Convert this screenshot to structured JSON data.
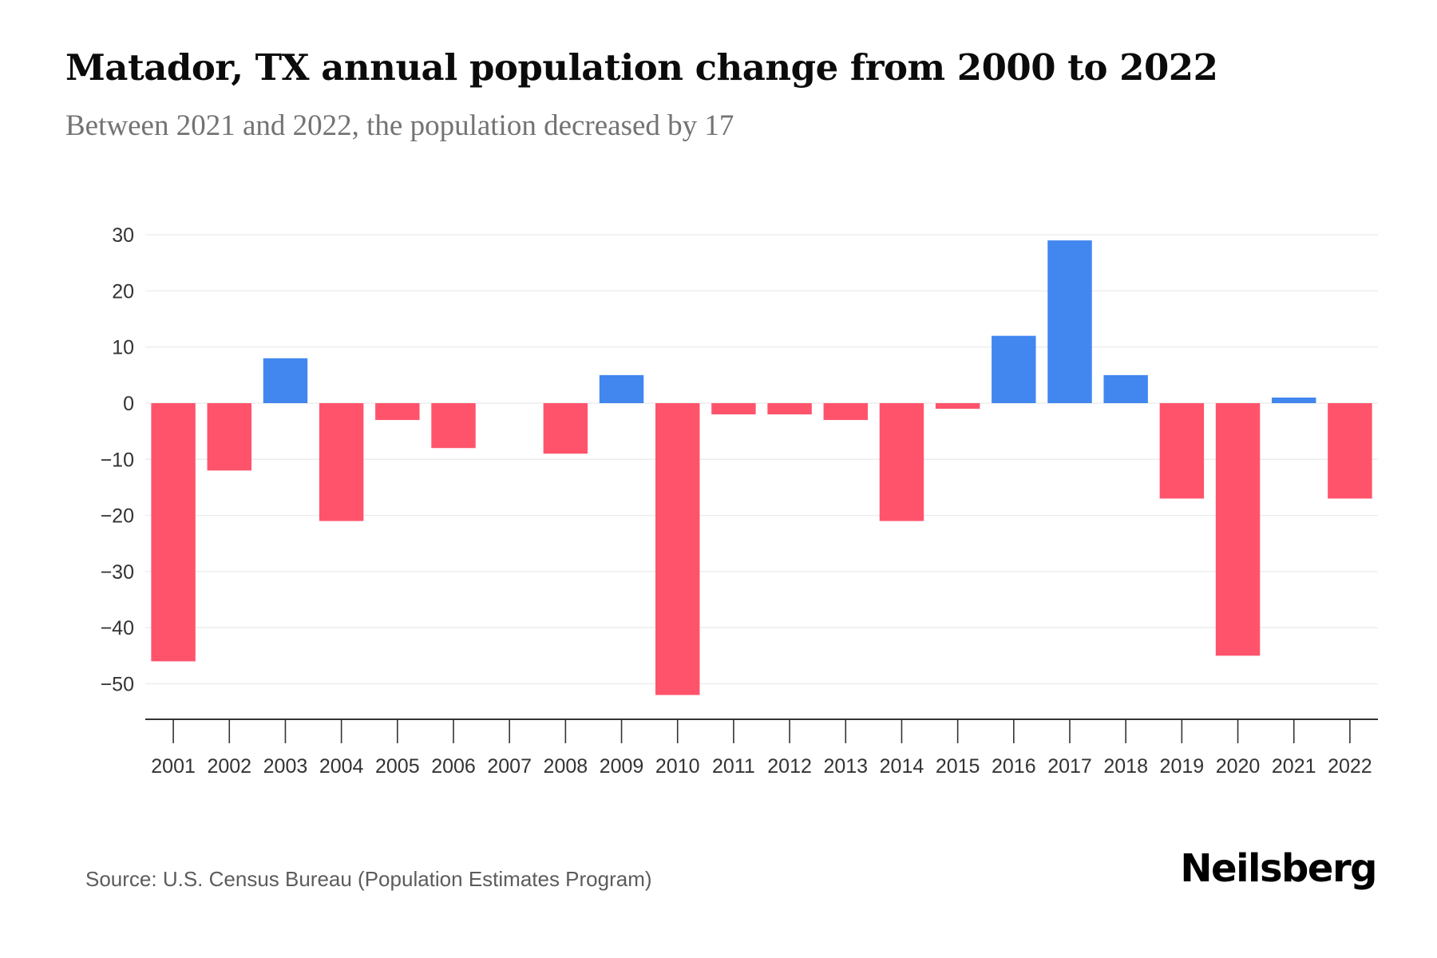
{
  "header": {
    "title": "Matador, TX annual population change from 2000 to 2022",
    "subtitle": "Between 2021 and 2022, the population decreased by 17"
  },
  "footer": {
    "source": "Source: U.S. Census Bureau (Population Estimates Program)",
    "brand": "Neilsberg"
  },
  "colors": {
    "positive": "#4287f0",
    "negative": "#ff536c",
    "grid": "#ebebeb",
    "axis": "#333333",
    "tick_label": "#333333"
  },
  "chart_data": {
    "type": "bar",
    "title": "Matador, TX annual population change from 2000 to 2022",
    "subtitle": "Between 2021 and 2022, the population decreased by 17",
    "xlabel": "",
    "ylabel": "",
    "categories": [
      "2001",
      "2002",
      "2003",
      "2004",
      "2005",
      "2006",
      "2007",
      "2008",
      "2009",
      "2010",
      "2011",
      "2012",
      "2013",
      "2014",
      "2015",
      "2016",
      "2017",
      "2018",
      "2019",
      "2020",
      "2021",
      "2022"
    ],
    "values": [
      -46,
      -12,
      8,
      -21,
      -3,
      -8,
      0,
      -9,
      5,
      -52,
      -2,
      -2,
      -3,
      -21,
      -1,
      12,
      29,
      5,
      -17,
      -45,
      1,
      -17
    ],
    "ylim": [
      -56.5,
      32
    ],
    "yticks": [
      30,
      20,
      10,
      0,
      -10,
      -20,
      -30,
      -40,
      -50
    ],
    "ytick_labels": [
      "30",
      "20",
      "10",
      "0",
      "−10",
      "−20",
      "−30",
      "−40",
      "−50"
    ],
    "grid": true,
    "legend": "none",
    "color_rule": "positive values blue, negative values red"
  }
}
